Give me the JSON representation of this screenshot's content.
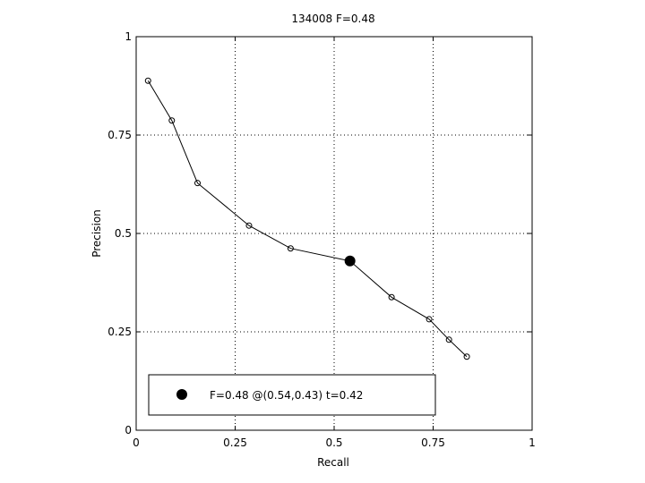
{
  "chart_data": {
    "type": "line",
    "title": "134008 F=0.48",
    "xlabel": "Recall",
    "ylabel": "Precision",
    "xlim": [
      0,
      1
    ],
    "ylim": [
      0,
      1
    ],
    "xticks": [
      0,
      0.25,
      0.5,
      0.75,
      1
    ],
    "yticks": [
      0,
      0.25,
      0.5,
      0.75,
      1
    ],
    "xtick_labels": [
      "0",
      "0.25",
      "0.5",
      "0.75",
      "1"
    ],
    "ytick_labels": [
      "0",
      "0.25",
      "0.5",
      "0.75",
      "1"
    ],
    "grid": true,
    "series": [
      {
        "x": [
          0.03,
          0.09,
          0.155,
          0.285,
          0.39,
          0.645,
          0.74,
          0.79,
          0.835
        ],
        "y": [
          0.888,
          0.787,
          0.628,
          0.52,
          0.462,
          0.338,
          0.282,
          0.23,
          0.187
        ]
      }
    ],
    "best_point": {
      "x": 0.54,
      "y": 0.43
    },
    "legend": {
      "position": "bottom",
      "text": "F=0.48 @(0.54,0.43) t=0.42"
    }
  }
}
